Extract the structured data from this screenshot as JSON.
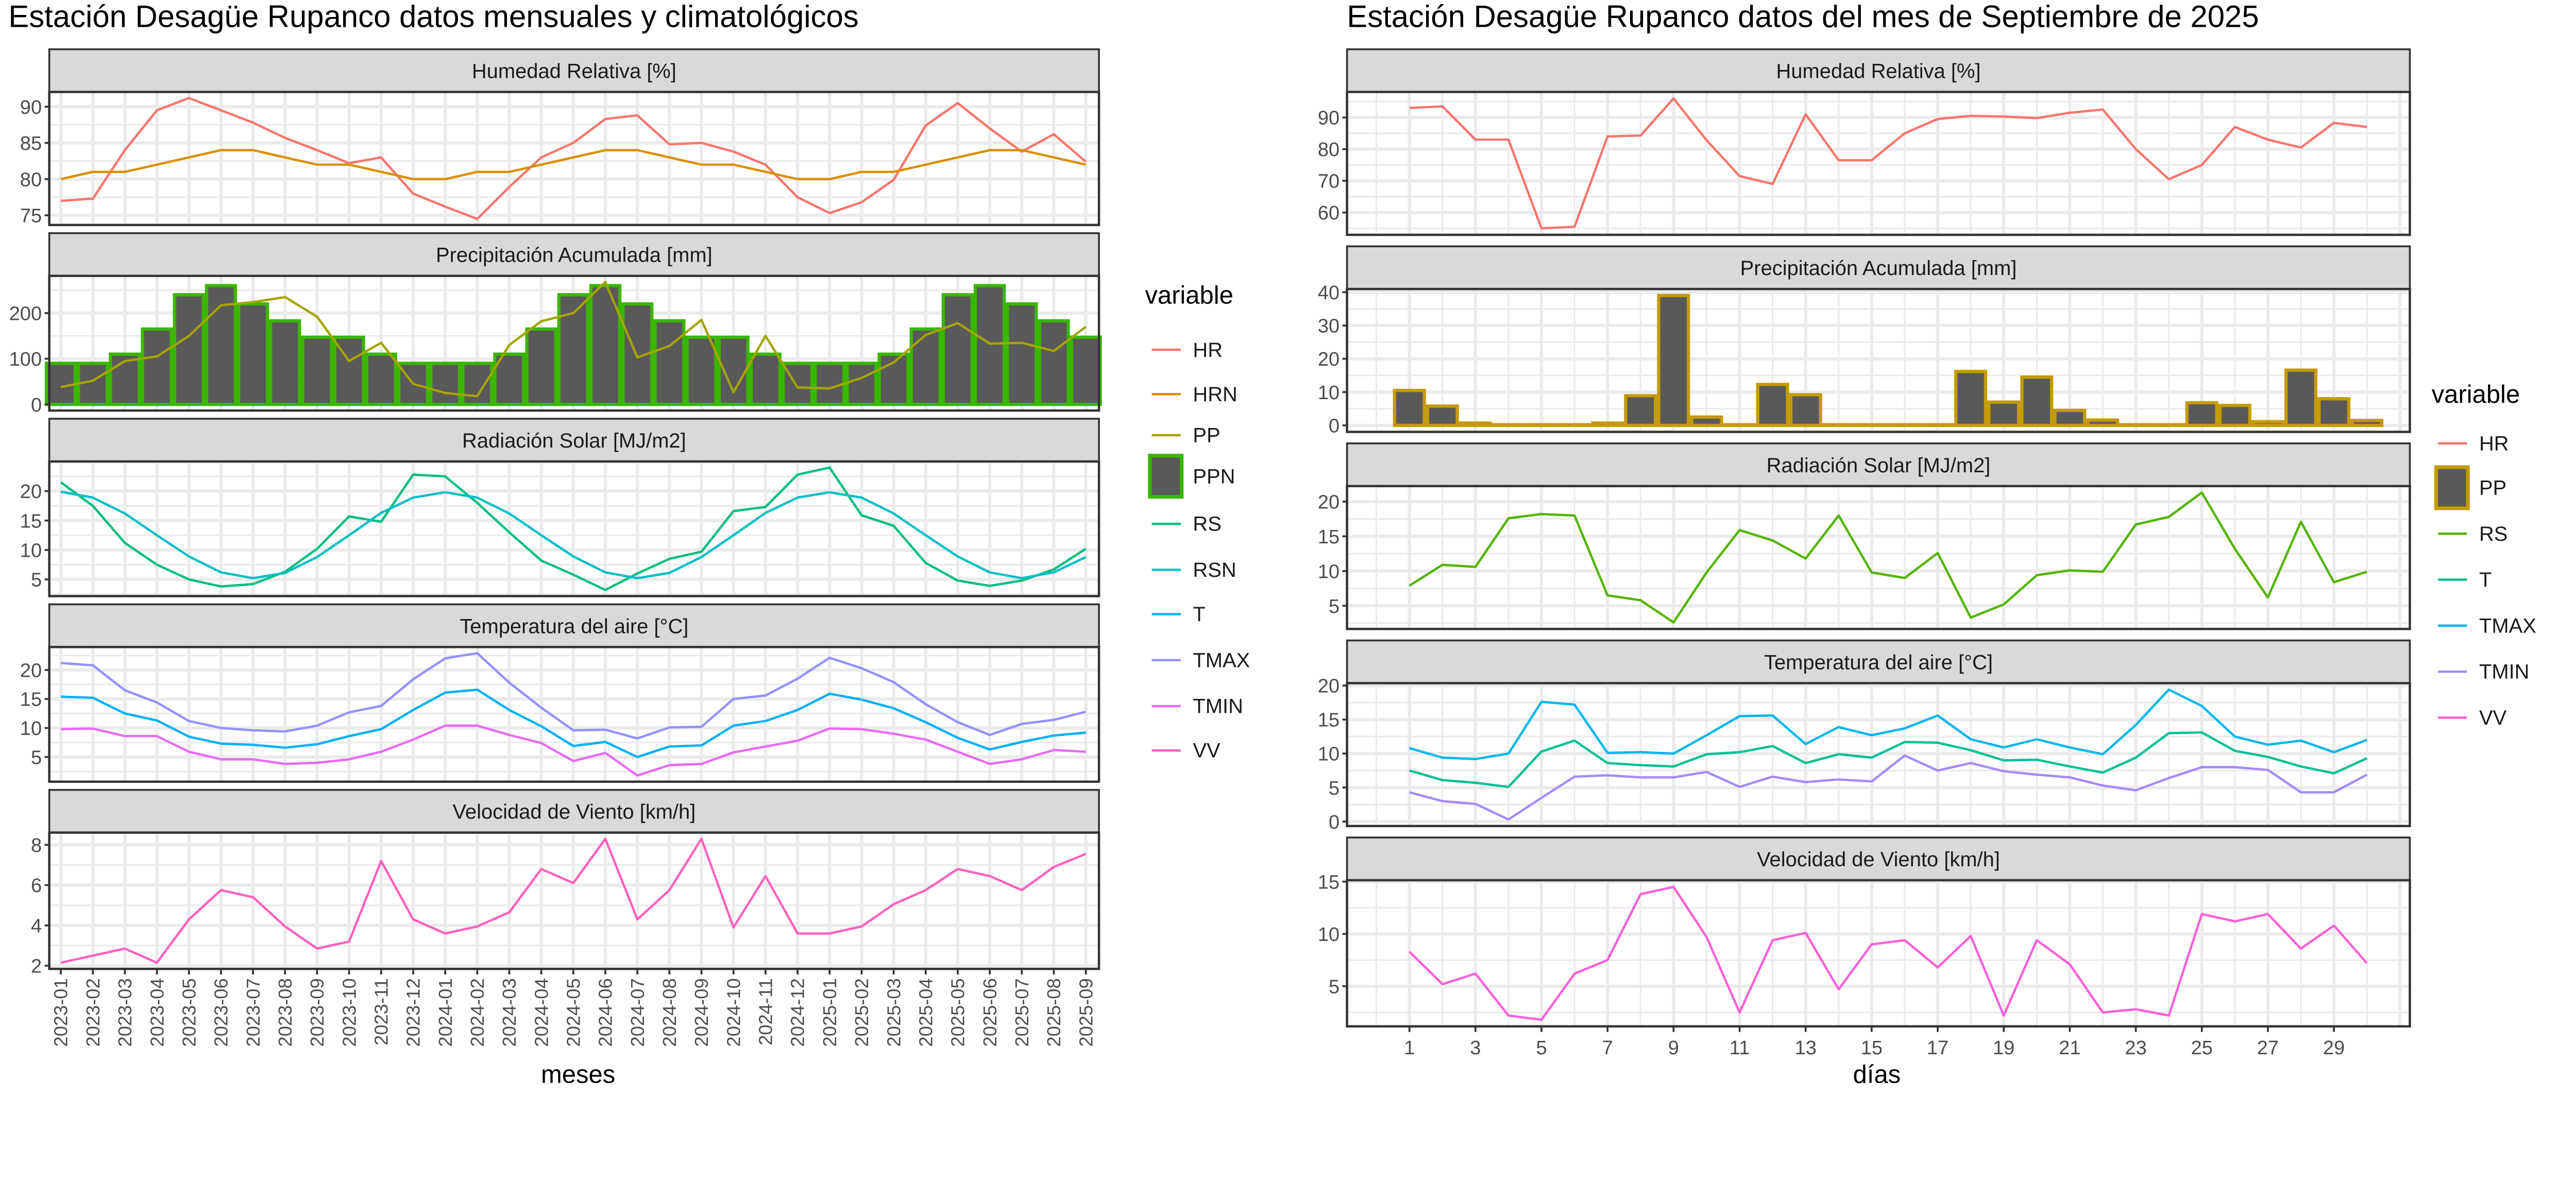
{
  "chart_data": [
    {
      "type": "line",
      "title": "Estación Desagüe Rupanco datos mensuales y climatológicos",
      "xlabel": "meses",
      "legend_title": "variable",
      "legend_position": "right",
      "grid": true,
      "categories": [
        "2023-01",
        "2023-02",
        "2023-03",
        "2023-04",
        "2023-05",
        "2023-06",
        "2023-07",
        "2023-08",
        "2023-09",
        "2023-10",
        "2023-11",
        "2023-12",
        "2024-01",
        "2024-02",
        "2024-03",
        "2024-04",
        "2024-05",
        "2024-06",
        "2024-07",
        "2024-08",
        "2024-09",
        "2024-10",
        "2024-11",
        "2024-12",
        "2025-01",
        "2025-02",
        "2025-03",
        "2025-04",
        "2025-05",
        "2025-06",
        "2025-07",
        "2025-08",
        "2025-09"
      ],
      "legend": [
        {
          "name": "HR",
          "color": "#F8766D",
          "key": "line"
        },
        {
          "name": "HRN",
          "color": "#D89000",
          "key": "line"
        },
        {
          "name": "PP",
          "color": "#A3A500",
          "key": "line"
        },
        {
          "name": "PPN",
          "color": "#39B600",
          "key": "bar"
        },
        {
          "name": "RS",
          "color": "#00BF7D",
          "key": "line"
        },
        {
          "name": "RSN",
          "color": "#00BFC4",
          "key": "line"
        },
        {
          "name": "T",
          "color": "#00B0F6",
          "key": "line"
        },
        {
          "name": "TMAX",
          "color": "#9590FF",
          "key": "line"
        },
        {
          "name": "TMIN",
          "color": "#E76BF3",
          "key": "line"
        },
        {
          "name": "VV",
          "color": "#FF62BC",
          "key": "line"
        }
      ],
      "panels": [
        {
          "title": "Humedad Relativa [%]",
          "yticks": [
            75,
            80,
            85,
            90
          ],
          "series": [
            {
              "name": "HR",
              "type": "line",
              "values": [
                77,
                77.3,
                84,
                89.5,
                91.2,
                89.5,
                87.8,
                85.7,
                84,
                82.2,
                83,
                78,
                76.2,
                74.5,
                78.9,
                83,
                85,
                88.3,
                88.8,
                84.8,
                85,
                83.8,
                82,
                77.5,
                75.3,
                76.8,
                79.9,
                87.4,
                90.5,
                87,
                83.8,
                86.2,
                82.4
              ]
            },
            {
              "name": "HRN",
              "type": "line",
              "values": [
                80,
                81,
                81,
                82,
                83,
                84,
                84,
                83,
                82,
                82,
                81,
                80,
                80,
                81,
                81,
                82,
                83,
                84,
                84,
                83,
                82,
                82,
                81,
                80,
                80,
                81,
                81,
                82,
                83,
                84,
                84,
                83,
                82
              ]
            }
          ]
        },
        {
          "title": "Precipitación Acumulada [mm]",
          "yticks": [
            0,
            100,
            200
          ],
          "series": [
            {
              "name": "PPN",
              "type": "bar",
              "values": [
                90,
                90,
                110,
                165,
                240,
                260,
                220,
                183,
                147,
                147,
                110,
                90,
                90,
                90,
                110,
                165,
                240,
                260,
                220,
                183,
                147,
                147,
                110,
                90,
                90,
                90,
                110,
                165,
                240,
                260,
                220,
                183,
                147
              ]
            },
            {
              "name": "PP",
              "type": "line",
              "values": [
                38,
                52,
                95,
                105,
                150,
                217,
                224,
                235,
                192,
                95,
                135,
                45,
                25,
                18,
                130,
                182,
                200,
                268,
                103,
                128,
                185,
                27,
                150,
                37,
                35,
                58,
                92,
                152,
                178,
                133,
                135,
                117,
                170
              ]
            }
          ]
        },
        {
          "title": "Radiación Solar [MJ/m2]",
          "yticks": [
            5,
            10,
            15,
            20
          ],
          "series": [
            {
              "name": "RS",
              "type": "line",
              "values": [
                21.5,
                17.5,
                11.2,
                7.5,
                5,
                3.8,
                4.2,
                6.3,
                10.2,
                15.7,
                14.8,
                22.8,
                22.5,
                18,
                13,
                8.2,
                5.8,
                3.2,
                6,
                8.5,
                9.7,
                16.6,
                17.3,
                22.8,
                24,
                15.9,
                14.1,
                7.8,
                4.8,
                3.9,
                4.8,
                6.7,
                10.2
              ]
            },
            {
              "name": "RSN",
              "type": "line",
              "values": [
                19.9,
                18.9,
                16.2,
                12.5,
                8.9,
                6.2,
                5.2,
                6.1,
                8.8,
                12.5,
                16.3,
                18.9,
                19.8,
                18.9,
                16.2,
                12.5,
                8.9,
                6.2,
                5.2,
                6.1,
                8.8,
                12.5,
                16.3,
                18.9,
                19.8,
                18.9,
                16.2,
                12.5,
                8.9,
                6.2,
                5.2,
                6.2,
                8.8
              ]
            }
          ]
        },
        {
          "title": "Temperatura del aire [°C]",
          "yticks": [
            5,
            10,
            15,
            20
          ],
          "series": [
            {
              "name": "TMAX",
              "type": "line",
              "values": [
                21.2,
                20.8,
                16.5,
                14.4,
                11.2,
                10,
                9.6,
                9.4,
                10.4,
                12.7,
                13.8,
                18.4,
                22,
                22.9,
                17.8,
                13.5,
                9.6,
                9.7,
                8.2,
                10.1,
                10.2,
                15,
                15.6,
                18.5,
                22.1,
                20.3,
                17.9,
                14.1,
                11,
                8.8,
                10.7,
                11.4,
                12.8
              ]
            },
            {
              "name": "T",
              "type": "line",
              "values": [
                15.4,
                15.2,
                12.5,
                11.3,
                8.5,
                7.3,
                7.1,
                6.6,
                7.2,
                8.6,
                9.8,
                13.1,
                16.1,
                16.6,
                13.1,
                10.3,
                6.9,
                7.6,
                5,
                6.8,
                7,
                10.4,
                11.2,
                13.1,
                15.9,
                14.9,
                13.4,
                11,
                8.3,
                6.3,
                7.6,
                8.7,
                9.2
              ]
            },
            {
              "name": "TMIN",
              "type": "line",
              "values": [
                9.8,
                9.9,
                8.6,
                8.6,
                5.9,
                4.6,
                4.6,
                3.8,
                4,
                4.6,
                5.9,
                8,
                10.4,
                10.4,
                8.8,
                7.4,
                4.3,
                5.7,
                1.8,
                3.6,
                3.8,
                5.8,
                6.8,
                7.8,
                9.9,
                9.8,
                9,
                8,
                5.9,
                3.8,
                4.6,
                6.2,
                5.9
              ]
            }
          ]
        },
        {
          "title": "Velocidad de Viento [km/h]",
          "yticks": [
            2,
            4,
            6,
            8
          ],
          "series": [
            {
              "name": "VV",
              "type": "line",
              "values": [
                2.15,
                2.5,
                2.85,
                2.15,
                4.3,
                5.75,
                5.4,
                3.95,
                2.85,
                3.2,
                7.2,
                4.3,
                3.6,
                3.95,
                4.65,
                6.8,
                6.1,
                8.3,
                4.3,
                5.75,
                8.3,
                3.9,
                6.45,
                3.6,
                3.6,
                3.95,
                5.05,
                5.75,
                6.8,
                6.45,
                5.75,
                6.9,
                7.55
              ]
            }
          ]
        }
      ]
    },
    {
      "type": "line",
      "title": "Estación Desagüe Rupanco datos del mes de Septiembre de 2025",
      "xlabel": "días",
      "legend_title": "variable",
      "legend_position": "right",
      "grid": true,
      "x": [
        1,
        2,
        3,
        4,
        5,
        6,
        7,
        8,
        9,
        10,
        11,
        12,
        13,
        14,
        15,
        16,
        17,
        18,
        19,
        20,
        21,
        22,
        23,
        24,
        25,
        26,
        27,
        28,
        29,
        30
      ],
      "xticks": [
        1,
        3,
        5,
        7,
        9,
        11,
        13,
        15,
        17,
        19,
        21,
        23,
        25,
        27,
        29
      ],
      "legend": [
        {
          "name": "HR",
          "color": "#F8766D",
          "key": "line"
        },
        {
          "name": "PP",
          "color": "#C49A00",
          "key": "bar"
        },
        {
          "name": "RS",
          "color": "#53B400",
          "key": "line"
        },
        {
          "name": "T",
          "color": "#00C094",
          "key": "line"
        },
        {
          "name": "TMAX",
          "color": "#00B6EB",
          "key": "line"
        },
        {
          "name": "TMIN",
          "color": "#A58AFF",
          "key": "line"
        },
        {
          "name": "VV",
          "color": "#FB61D7",
          "key": "line"
        }
      ],
      "panels": [
        {
          "title": "Humedad Relativa [%]",
          "yticks": [
            60,
            70,
            80,
            90
          ],
          "series": [
            {
              "name": "HR",
              "type": "line",
              "values": [
                93,
                93.5,
                83,
                83,
                55,
                55.5,
                84,
                84.3,
                96,
                82.8,
                71.5,
                69,
                91,
                76.5,
                76.5,
                85,
                89.5,
                90.5,
                90.3,
                89.8,
                91.5,
                92.5,
                80,
                70.5,
                75,
                87,
                83,
                80.5,
                88.3,
                87
              ]
            }
          ]
        },
        {
          "title": "Precipitación Acumulada [mm]",
          "yticks": [
            0,
            10,
            20,
            30,
            40
          ],
          "series": [
            {
              "name": "PP",
              "type": "bar",
              "values": [
                10.5,
                5.8,
                0.7,
                0.2,
                0.2,
                0.2,
                0.7,
                8.9,
                39,
                2.5,
                0.2,
                12.3,
                9.2,
                0.2,
                0.2,
                0.2,
                0.2,
                16.2,
                7,
                14.5,
                4.5,
                1.6,
                0.2,
                0.2,
                6.8,
                6,
                1.1,
                16.6,
                8,
                1.5
              ]
            }
          ]
        },
        {
          "title": "Radiación Solar [MJ/m2]",
          "yticks": [
            5,
            10,
            15,
            20
          ],
          "series": [
            {
              "name": "RS",
              "type": "line",
              "values": [
                7.9,
                10.9,
                10.6,
                17.6,
                18.2,
                18,
                6.5,
                5.8,
                2.6,
                9.8,
                15.9,
                14.4,
                11.8,
                18,
                9.8,
                9,
                12.6,
                3.3,
                5.2,
                9.4,
                10.1,
                9.9,
                16.7,
                17.8,
                21.3,
                13.2,
                6.2,
                17.1,
                8.4,
                9.9
              ]
            }
          ]
        },
        {
          "title": "Temperatura del aire [°C]",
          "yticks": [
            0,
            5,
            10,
            15,
            20
          ],
          "series": [
            {
              "name": "TMAX",
              "type": "line",
              "values": [
                10.8,
                9.4,
                9.2,
                10,
                17.6,
                17.2,
                10.1,
                10.2,
                10,
                12.7,
                15.5,
                15.6,
                11.4,
                13.9,
                12.7,
                13.7,
                15.6,
                12.1,
                10.9,
                12.1,
                10.9,
                9.9,
                14.2,
                19.4,
                17,
                12.5,
                11.3,
                11.9,
                10.2,
                12
              ]
            },
            {
              "name": "T",
              "type": "line",
              "values": [
                7.5,
                6.1,
                5.7,
                5.1,
                10.3,
                11.9,
                8.6,
                8.3,
                8.1,
                9.9,
                10.2,
                11.1,
                8.6,
                9.9,
                9.4,
                11.7,
                11.6,
                10.5,
                9,
                9.1,
                8.1,
                7.2,
                9.4,
                13,
                13.1,
                10.4,
                9.5,
                8.1,
                7.1,
                9.3
              ]
            },
            {
              "name": "TMIN",
              "type": "line",
              "values": [
                4.3,
                3,
                2.6,
                0.3,
                3.5,
                6.6,
                6.8,
                6.5,
                6.5,
                7.3,
                5.1,
                6.6,
                5.8,
                6.2,
                5.9,
                9.7,
                7.5,
                8.6,
                7.4,
                6.9,
                6.5,
                5.3,
                4.6,
                6.4,
                8,
                8,
                7.6,
                4.3,
                4.3,
                6.9
              ]
            }
          ]
        },
        {
          "title": "Velocidad de Viento [km/h]",
          "yticks": [
            5,
            10,
            15
          ],
          "series": [
            {
              "name": "VV",
              "type": "line",
              "values": [
                8.3,
                5.2,
                6.2,
                2.2,
                1.8,
                6.2,
                7.5,
                13.8,
                14.5,
                9.7,
                2.5,
                9.4,
                10.1,
                4.7,
                9,
                9.4,
                6.8,
                9.8,
                2.2,
                9.4,
                7.1,
                2.5,
                2.8,
                2.2,
                11.9,
                11.2,
                11.9,
                8.6,
                10.8,
                7.2
              ]
            }
          ]
        }
      ]
    }
  ]
}
